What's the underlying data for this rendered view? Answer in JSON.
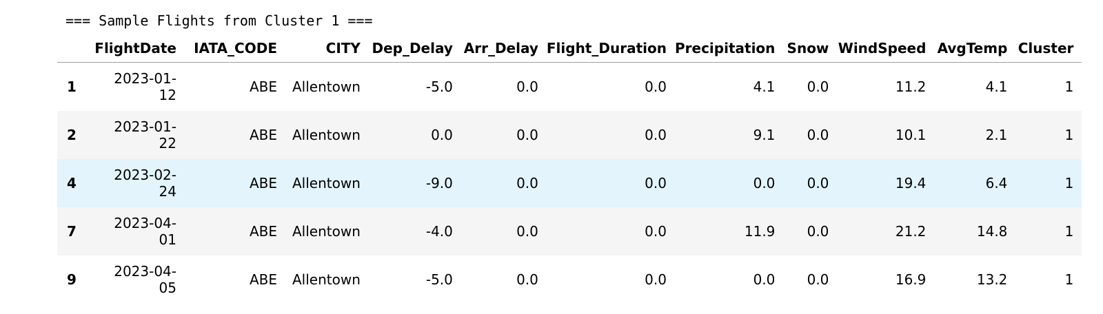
{
  "output": {
    "stream_text": "=== Sample Flights from Cluster 1 ==="
  },
  "table": {
    "columns": [
      "",
      "FlightDate",
      "IATA_CODE",
      "CITY",
      "Dep_Delay",
      "Arr_Delay",
      "Flight_Duration",
      "Precipitation",
      "Snow",
      "WindSpeed",
      "AvgTemp",
      "Cluster"
    ],
    "rows": [
      {
        "index": "1",
        "date_top": "2023-01-",
        "date_bottom": "12",
        "iata": "ABE",
        "city": "Allentown",
        "dep_delay": "-5.0",
        "arr_delay": "0.0",
        "flight_duration": "0.0",
        "precipitation": "4.1",
        "snow": "0.0",
        "windspeed": "11.2",
        "avgtemp": "4.1",
        "cluster": "1"
      },
      {
        "index": "2",
        "date_top": "2023-01-",
        "date_bottom": "22",
        "iata": "ABE",
        "city": "Allentown",
        "dep_delay": "0.0",
        "arr_delay": "0.0",
        "flight_duration": "0.0",
        "precipitation": "9.1",
        "snow": "0.0",
        "windspeed": "10.1",
        "avgtemp": "2.1",
        "cluster": "1"
      },
      {
        "index": "4",
        "date_top": "2023-02-",
        "date_bottom": "24",
        "iata": "ABE",
        "city": "Allentown",
        "dep_delay": "-9.0",
        "arr_delay": "0.0",
        "flight_duration": "0.0",
        "precipitation": "0.0",
        "snow": "0.0",
        "windspeed": "19.4",
        "avgtemp": "6.4",
        "cluster": "1"
      },
      {
        "index": "7",
        "date_top": "2023-04-",
        "date_bottom": "01",
        "iata": "ABE",
        "city": "Allentown",
        "dep_delay": "-4.0",
        "arr_delay": "0.0",
        "flight_duration": "0.0",
        "precipitation": "11.9",
        "snow": "0.0",
        "windspeed": "21.2",
        "avgtemp": "14.8",
        "cluster": "1"
      },
      {
        "index": "9",
        "date_top": "2023-04-",
        "date_bottom": "05",
        "iata": "ABE",
        "city": "Allentown",
        "dep_delay": "-5.0",
        "arr_delay": "0.0",
        "flight_duration": "0.0",
        "precipitation": "0.0",
        "snow": "0.0",
        "windspeed": "16.9",
        "avgtemp": "13.2",
        "cluster": "1"
      }
    ]
  },
  "colors": {
    "row_alt": "#f5f5f5",
    "row_hover": "#e3f4fc",
    "header_border": "#9e9e9e"
  }
}
